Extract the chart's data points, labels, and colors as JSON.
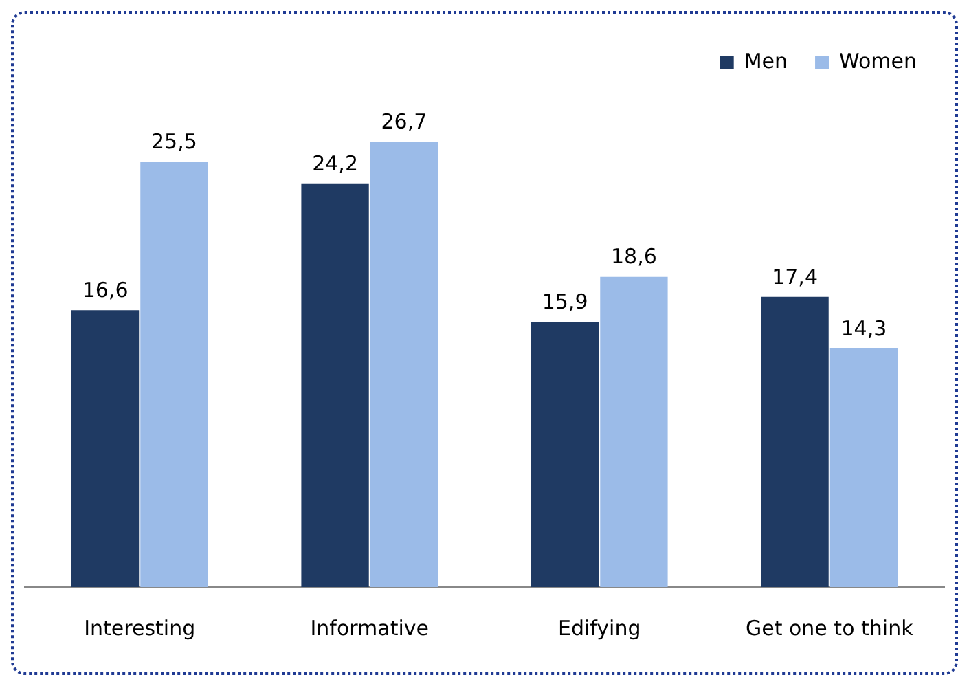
{
  "chart_data": {
    "type": "bar",
    "categories": [
      "Interesting",
      "Informative",
      "Edifying",
      "Get one to think"
    ],
    "series": [
      {
        "name": "Men",
        "color": "#1f3a63",
        "values": [
          16.6,
          24.2,
          15.9,
          17.4
        ],
        "value_labels": [
          "16,6",
          "24,2",
          "15,9",
          "17,4"
        ]
      },
      {
        "name": "Women",
        "color": "#9bbbe8",
        "values": [
          25.5,
          26.7,
          18.6,
          14.3
        ],
        "value_labels": [
          "25,5",
          "26,7",
          "18,6",
          "14,3"
        ]
      }
    ],
    "legend": "top right",
    "grid": false
  }
}
